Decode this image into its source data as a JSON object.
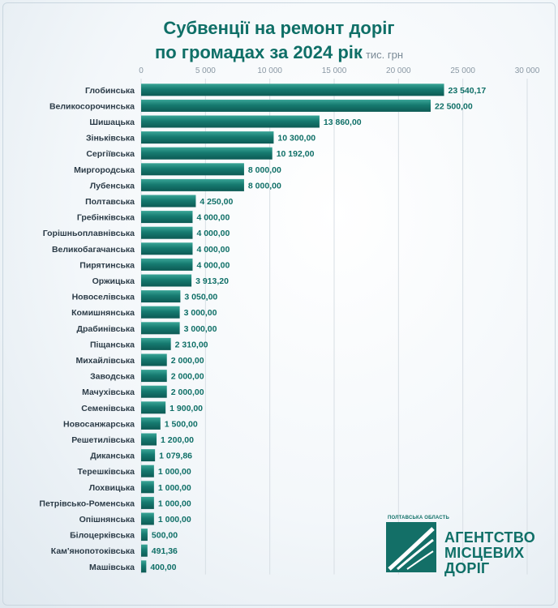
{
  "title": {
    "line1": "Субвенції на ремонт доріг",
    "line2": "по громадах за 2024 рік",
    "unit": "тис. грн"
  },
  "logo": {
    "small": "ПОЛТАВСЬКА ОБЛАСТЬ",
    "line1": "АГЕНТСТВО",
    "line2": "МІСЦЕВИХ",
    "line3": "ДОРІГ"
  },
  "colors": {
    "bar": "#136f67",
    "bar_light": "#2a9a8e",
    "label": "#0f6f67",
    "grid": "#d7dee4"
  },
  "chart_data": {
    "type": "bar",
    "orientation": "horizontal",
    "title": "Субвенції на ремонт доріг по громадах за 2024 рік",
    "unit": "тис. грн",
    "xlim": [
      0,
      30000
    ],
    "ticks": [
      {
        "value": 0,
        "label": "0"
      },
      {
        "value": 5000,
        "label": "5 000"
      },
      {
        "value": 10000,
        "label": "10 000"
      },
      {
        "value": 15000,
        "label": "15 000"
      },
      {
        "value": 20000,
        "label": "20 000"
      },
      {
        "value": 25000,
        "label": "25 000"
      },
      {
        "value": 30000,
        "label": "30 000"
      }
    ],
    "grid": true,
    "categories": [
      "Глобинська",
      "Великосорочинська",
      "Шишацька",
      "Зіньківська",
      "Сергіївська",
      "Миргородська",
      "Лубенська",
      "Полтавська",
      "Гребінківська",
      "Горішньоплавнівська",
      "Великобагачанська",
      "Пирятинська",
      "Оржицька",
      "Новоселівська",
      "Комишнянська",
      "Драбинівська",
      "Піщанська",
      "Михайлівська",
      "Заводська",
      "Мачухівська",
      "Семенівська",
      "Новосанжарська",
      "Решетилівська",
      "Диканська",
      "Терешківська",
      "Лохвицька",
      "Петрівсько-Роменська",
      "Опішнянська",
      "Білоцерківська",
      "Кам'янопотоківська",
      "Машівська"
    ],
    "values": [
      23540.17,
      22500,
      13860,
      10300,
      10192,
      8000,
      8000,
      4250,
      4000,
      4000,
      4000,
      4000,
      3913.2,
      3050,
      3000,
      3000,
      2310,
      2000,
      2000,
      2000,
      1900,
      1500,
      1200,
      1079.86,
      1000,
      1000,
      1000,
      1000,
      500,
      491.36,
      400
    ],
    "value_labels": [
      "23 540,17",
      "22 500,00",
      "13 860,00",
      "10 300,00",
      "10 192,00",
      "8 000,00",
      "8 000,00",
      "4 250,00",
      "4 000,00",
      "4 000,00",
      "4 000,00",
      "4 000,00",
      "3 913,20",
      "3 050,00",
      "3 000,00",
      "3 000,00",
      "2 310,00",
      "2 000,00",
      "2 000,00",
      "2 000,00",
      "1 900,00",
      "1 500,00",
      "1 200,00",
      "1 079,86",
      "1 000,00",
      "1 000,00",
      "1 000,00",
      "1 000,00",
      "500,00",
      "491,36",
      "400,00"
    ]
  }
}
